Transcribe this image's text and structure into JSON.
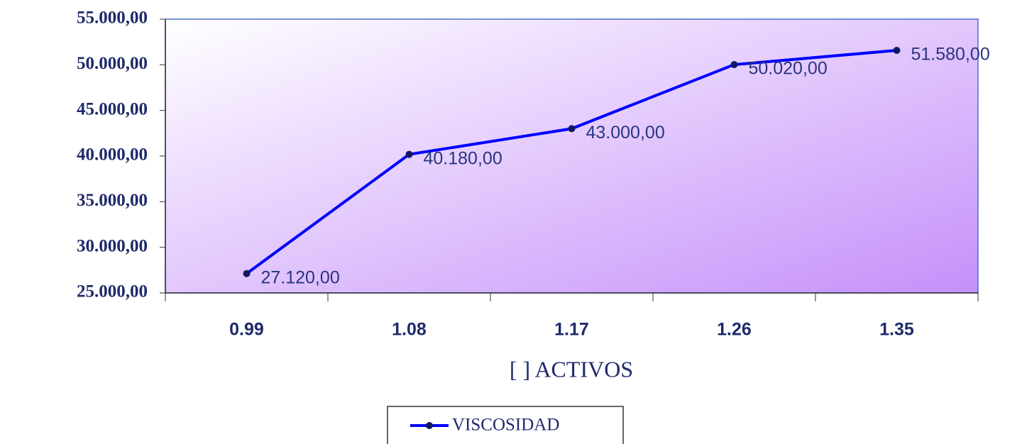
{
  "chart_data": {
    "type": "line",
    "x_label": "[ ] ACTIVOS",
    "categories": [
      "0.99",
      "1.08",
      "1.17",
      "1.26",
      "1.35"
    ],
    "series": [
      {
        "name": "VISCOSIDAD",
        "color": "#0000ff",
        "marker_color": "#101860",
        "values": [
          27120,
          40180,
          43000,
          50020,
          51580
        ],
        "value_labels": [
          "27.120,00",
          "40.180,00",
          "43.000,00",
          "50.020,00",
          "51.580,00"
        ]
      }
    ],
    "ylim": [
      25000,
      55000
    ],
    "yticks": [
      {
        "value": 25000,
        "label": "25.000,00"
      },
      {
        "value": 30000,
        "label": "30.000,00"
      },
      {
        "value": 35000,
        "label": "35.000,00"
      },
      {
        "value": 40000,
        "label": "40.000,00"
      },
      {
        "value": 45000,
        "label": "45.000,00"
      },
      {
        "value": 50000,
        "label": "50.000,00"
      },
      {
        "value": 55000,
        "label": "55.000,00"
      }
    ],
    "legend": "bottom"
  }
}
